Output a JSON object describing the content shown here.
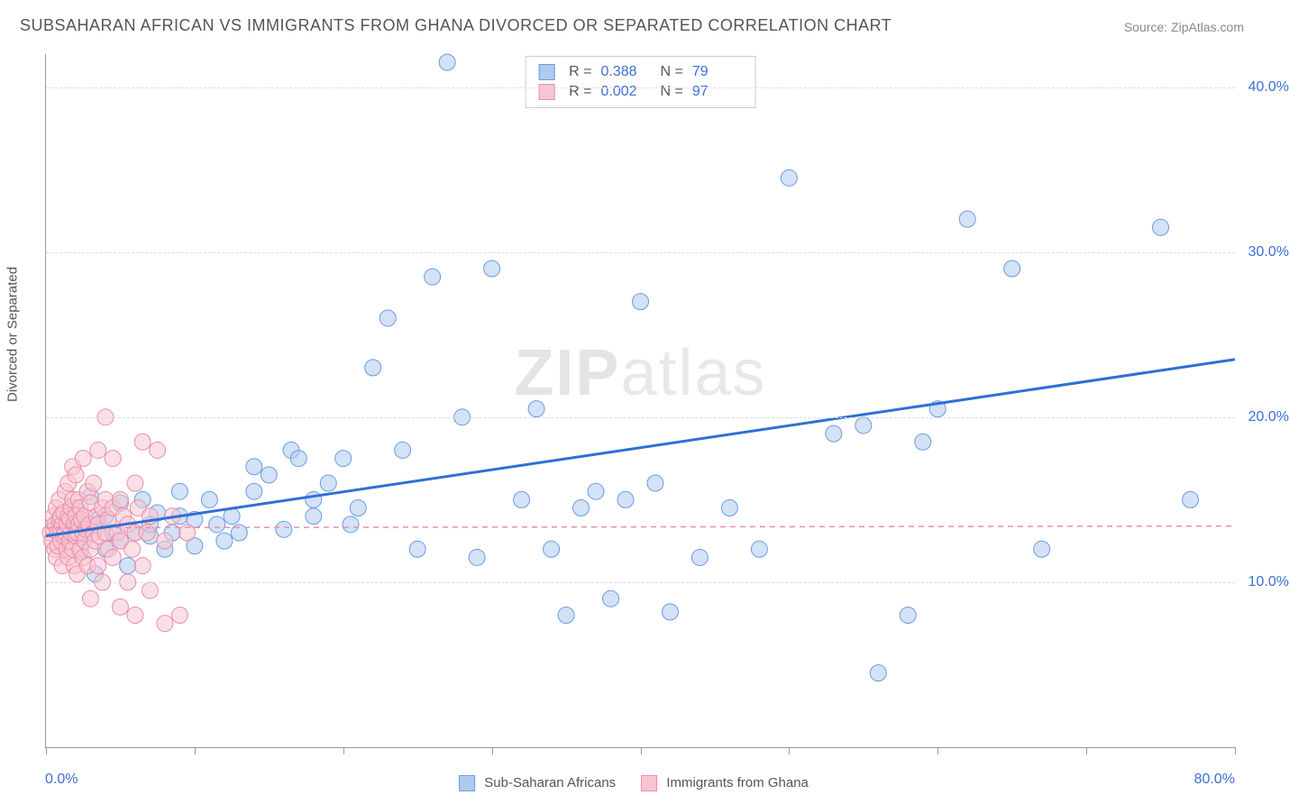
{
  "title": "SUBSAHARAN AFRICAN VS IMMIGRANTS FROM GHANA DIVORCED OR SEPARATED CORRELATION CHART",
  "source": "Source: ZipAtlas.com",
  "ylabel": "Divorced or Separated",
  "watermark": {
    "zip": "ZIP",
    "atlas": "atlas"
  },
  "chart": {
    "type": "scatter",
    "xlim": [
      0,
      80
    ],
    "ylim": [
      0,
      42
    ],
    "x_axis_labels": {
      "min": "0.0%",
      "max": "80.0%"
    },
    "y_ticks": [
      10,
      20,
      30,
      40
    ],
    "y_tick_labels": [
      "10.0%",
      "20.0%",
      "30.0%",
      "40.0%"
    ],
    "x_tick_positions": [
      0,
      10,
      20,
      30,
      40,
      50,
      60,
      70,
      80
    ],
    "background_color": "#ffffff",
    "grid_color": "#dddddd",
    "axis_color": "#999999",
    "marker_radius": 9,
    "marker_opacity": 0.55,
    "series": [
      {
        "name": "Sub-Saharan Africans",
        "color_fill": "#aecbef",
        "color_stroke": "#6a9be0",
        "R": "0.388",
        "N": "79",
        "trend": {
          "style": "solid",
          "color": "#2f6fd6",
          "width": 3,
          "y_at_xmin": 12.8,
          "y_at_xmax": 23.5
        },
        "points": [
          [
            1,
            13
          ],
          [
            1.5,
            12.5
          ],
          [
            2,
            13.2
          ],
          [
            2,
            14.5
          ],
          [
            2.3,
            11.8
          ],
          [
            2.5,
            12.9
          ],
          [
            3,
            13.5
          ],
          [
            3,
            15.2
          ],
          [
            3.3,
            10.5
          ],
          [
            3.5,
            13.8
          ],
          [
            4,
            12
          ],
          [
            4,
            14
          ],
          [
            4.5,
            13
          ],
          [
            5,
            12.5
          ],
          [
            5,
            14.8
          ],
          [
            5.5,
            11
          ],
          [
            6,
            13
          ],
          [
            6.5,
            15
          ],
          [
            7,
            12.8
          ],
          [
            7,
            13.5
          ],
          [
            7.5,
            14.2
          ],
          [
            8,
            12
          ],
          [
            8.5,
            13
          ],
          [
            9,
            15.5
          ],
          [
            9,
            14
          ],
          [
            10,
            13.8
          ],
          [
            10,
            12.2
          ],
          [
            11,
            15
          ],
          [
            11.5,
            13.5
          ],
          [
            12,
            12.5
          ],
          [
            12.5,
            14
          ],
          [
            13,
            13
          ],
          [
            14,
            15.5
          ],
          [
            14,
            17
          ],
          [
            15,
            16.5
          ],
          [
            16,
            13.2
          ],
          [
            16.5,
            18
          ],
          [
            17,
            17.5
          ],
          [
            18,
            14
          ],
          [
            18,
            15
          ],
          [
            19,
            16
          ],
          [
            20,
            17.5
          ],
          [
            20.5,
            13.5
          ],
          [
            21,
            14.5
          ],
          [
            22,
            23
          ],
          [
            23,
            26
          ],
          [
            24,
            18
          ],
          [
            25,
            12
          ],
          [
            26,
            28.5
          ],
          [
            27,
            41.5
          ],
          [
            28,
            20
          ],
          [
            29,
            11.5
          ],
          [
            30,
            29
          ],
          [
            32,
            15
          ],
          [
            33,
            20.5
          ],
          [
            34,
            12
          ],
          [
            35,
            8
          ],
          [
            36,
            14.5
          ],
          [
            37,
            15.5
          ],
          [
            38,
            9
          ],
          [
            39,
            15
          ],
          [
            40,
            27
          ],
          [
            41,
            16
          ],
          [
            42,
            8.2
          ],
          [
            44,
            11.5
          ],
          [
            46,
            14.5
          ],
          [
            48,
            12
          ],
          [
            50,
            34.5
          ],
          [
            53,
            19
          ],
          [
            55,
            19.5
          ],
          [
            56,
            4.5
          ],
          [
            58,
            8
          ],
          [
            59,
            18.5
          ],
          [
            60,
            20.5
          ],
          [
            62,
            32
          ],
          [
            65,
            29
          ],
          [
            67,
            12
          ],
          [
            75,
            31.5
          ],
          [
            77,
            15
          ]
        ]
      },
      {
        "name": "Immigrants from Ghana",
        "color_fill": "#f7c5d1",
        "color_stroke": "#e98fa8",
        "R": "0.002",
        "N": "97",
        "trend": {
          "style": "dashed",
          "color": "#e98fa8",
          "width": 1.5,
          "y_at_xmin": 13.3,
          "y_at_xmax": 13.4
        },
        "points": [
          [
            0.3,
            13
          ],
          [
            0.4,
            12.5
          ],
          [
            0.5,
            13.2
          ],
          [
            0.5,
            14
          ],
          [
            0.6,
            12
          ],
          [
            0.6,
            13.5
          ],
          [
            0.7,
            11.5
          ],
          [
            0.7,
            14.5
          ],
          [
            0.8,
            13
          ],
          [
            0.8,
            12.2
          ],
          [
            0.9,
            13.8
          ],
          [
            0.9,
            15
          ],
          [
            1,
            12.5
          ],
          [
            1,
            13.2
          ],
          [
            1,
            14
          ],
          [
            1.1,
            11
          ],
          [
            1.1,
            13.5
          ],
          [
            1.2,
            12.8
          ],
          [
            1.2,
            14.2
          ],
          [
            1.3,
            13
          ],
          [
            1.3,
            15.5
          ],
          [
            1.4,
            12
          ],
          [
            1.4,
            13.5
          ],
          [
            1.5,
            11.5
          ],
          [
            1.5,
            14
          ],
          [
            1.5,
            16
          ],
          [
            1.6,
            12.5
          ],
          [
            1.6,
            13.8
          ],
          [
            1.7,
            13
          ],
          [
            1.7,
            14.5
          ],
          [
            1.8,
            12
          ],
          [
            1.8,
            15
          ],
          [
            1.8,
            17
          ],
          [
            1.9,
            13.5
          ],
          [
            1.9,
            11
          ],
          [
            2,
            12.8
          ],
          [
            2,
            14
          ],
          [
            2,
            16.5
          ],
          [
            2.1,
            13
          ],
          [
            2.1,
            10.5
          ],
          [
            2.2,
            13.5
          ],
          [
            2.2,
            15
          ],
          [
            2.3,
            12
          ],
          [
            2.3,
            14.5
          ],
          [
            2.4,
            13.8
          ],
          [
            2.5,
            11.5
          ],
          [
            2.5,
            13
          ],
          [
            2.5,
            17.5
          ],
          [
            2.6,
            12.5
          ],
          [
            2.6,
            14
          ],
          [
            2.7,
            13.2
          ],
          [
            2.8,
            11
          ],
          [
            2.8,
            15.5
          ],
          [
            2.9,
            13.5
          ],
          [
            3,
            12
          ],
          [
            3,
            14.8
          ],
          [
            3,
            9
          ],
          [
            3.2,
            13
          ],
          [
            3.2,
            16
          ],
          [
            3.3,
            12.5
          ],
          [
            3.4,
            14
          ],
          [
            3.5,
            13.5
          ],
          [
            3.5,
            11
          ],
          [
            3.5,
            18
          ],
          [
            3.6,
            12.8
          ],
          [
            3.8,
            14.5
          ],
          [
            3.8,
            10
          ],
          [
            4,
            13
          ],
          [
            4,
            15
          ],
          [
            4,
            20
          ],
          [
            4.2,
            12
          ],
          [
            4.2,
            13.8
          ],
          [
            4.5,
            14.5
          ],
          [
            4.5,
            11.5
          ],
          [
            4.5,
            17.5
          ],
          [
            4.8,
            13
          ],
          [
            5,
            12.5
          ],
          [
            5,
            15
          ],
          [
            5,
            8.5
          ],
          [
            5.2,
            14
          ],
          [
            5.5,
            13.5
          ],
          [
            5.5,
            10
          ],
          [
            5.8,
            12
          ],
          [
            6,
            13
          ],
          [
            6,
            16
          ],
          [
            6,
            8
          ],
          [
            6.2,
            14.5
          ],
          [
            6.5,
            11
          ],
          [
            6.5,
            18.5
          ],
          [
            6.8,
            13
          ],
          [
            7,
            9.5
          ],
          [
            7,
            14
          ],
          [
            7.5,
            18
          ],
          [
            8,
            12.5
          ],
          [
            8,
            7.5
          ],
          [
            8.5,
            14
          ],
          [
            9,
            8
          ],
          [
            9.5,
            13
          ]
        ]
      }
    ]
  },
  "legend_bottom": [
    {
      "label": "Sub-Saharan Africans",
      "fill": "#aecbef",
      "stroke": "#6a9be0"
    },
    {
      "label": "Immigrants from Ghana",
      "fill": "#f7c5d1",
      "stroke": "#e98fa8"
    }
  ]
}
